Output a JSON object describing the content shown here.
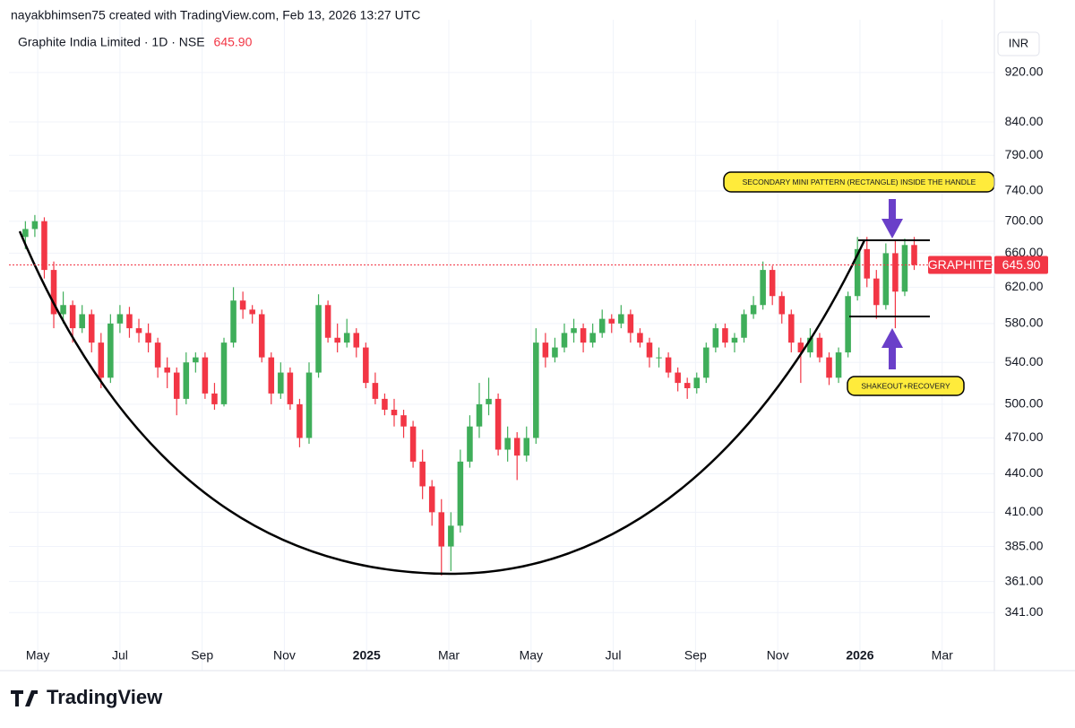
{
  "chart_data": {
    "type": "candlestick",
    "attribution": "nayakbhimsen75 created with TradingView.com, Feb 13, 2026 13:27 UTC",
    "title": "Graphite India Limited · 1D · NSE",
    "currency": "INR",
    "symbol": "GRAPHITE",
    "last_price": {
      "value": 645.9,
      "label": "645.90"
    },
    "brand": "TradingView",
    "annotations": [
      "SECONDARY MINI PATTERN (RECTANGLE) INSIDE THE HANDLE",
      "SHAKEOUT+RECOVERY"
    ],
    "up_color": "#3fae5a",
    "down_color": "#f23645",
    "log_scale": true,
    "grid": true,
    "x": [
      0.7,
      0.93,
      1.16,
      1.39,
      1.62,
      1.85,
      2.08,
      2.31,
      2.54,
      2.77,
      3.0,
      3.23,
      3.46,
      3.69,
      3.92,
      4.15,
      4.38,
      4.61,
      4.84,
      5.07,
      5.3,
      5.53,
      5.76,
      5.99,
      6.22,
      6.45,
      6.68,
      6.91,
      7.14,
      7.37,
      7.6,
      7.83,
      8.06,
      8.29,
      8.52,
      8.75,
      8.98,
      9.21,
      9.44,
      9.67,
      9.9,
      10.13,
      10.36,
      10.59,
      10.82,
      11.05,
      11.28,
      11.51,
      11.74,
      11.97,
      12.2,
      12.43,
      12.66,
      12.89,
      13.12,
      13.35,
      13.58,
      13.81,
      14.04,
      14.27,
      14.5,
      14.73,
      14.96,
      15.19,
      15.42,
      15.65,
      15.88,
      16.11,
      16.34,
      16.57,
      16.8,
      17.03,
      17.26,
      17.49,
      17.72,
      17.95,
      18.18,
      18.41,
      18.64,
      18.87,
      19.1,
      19.33,
      19.56,
      19.79,
      20.02,
      20.25,
      20.48,
      20.71,
      20.94,
      21.17,
      21.4,
      21.63,
      21.86,
      22.09,
      22.32
    ],
    "open": [
      680,
      690,
      700,
      640,
      590,
      600,
      575,
      590,
      560,
      525,
      580,
      590,
      575,
      570,
      560,
      535,
      530,
      505,
      540,
      545,
      510,
      500,
      560,
      605,
      595,
      590,
      545,
      510,
      530,
      500,
      470,
      530,
      600,
      565,
      560,
      570,
      555,
      520,
      505,
      495,
      490,
      480,
      450,
      430,
      410,
      385,
      400,
      450,
      480,
      500,
      505,
      460,
      470,
      455,
      470,
      560,
      545,
      555,
      570,
      575,
      560,
      570,
      585,
      580,
      590,
      570,
      560,
      545,
      545,
      530,
      520,
      515,
      525,
      555,
      575,
      560,
      565,
      590,
      600,
      640,
      610,
      590,
      560,
      550,
      565,
      545,
      525,
      550,
      610,
      665,
      630,
      600,
      660,
      615,
      670
    ],
    "high": [
      700,
      708,
      705,
      650,
      615,
      605,
      600,
      595,
      570,
      590,
      600,
      598,
      585,
      580,
      565,
      545,
      535,
      550,
      550,
      550,
      520,
      565,
      620,
      615,
      600,
      595,
      550,
      540,
      535,
      505,
      540,
      612,
      605,
      580,
      585,
      575,
      560,
      530,
      510,
      505,
      495,
      485,
      460,
      435,
      420,
      410,
      460,
      490,
      520,
      525,
      510,
      480,
      475,
      480,
      575,
      570,
      565,
      580,
      585,
      580,
      580,
      595,
      590,
      600,
      595,
      575,
      565,
      555,
      550,
      535,
      525,
      530,
      560,
      580,
      580,
      570,
      595,
      610,
      650,
      645,
      615,
      595,
      565,
      575,
      570,
      550,
      555,
      615,
      680,
      680,
      640,
      672,
      675,
      678,
      680
    ],
    "low": [
      665,
      680,
      630,
      575,
      580,
      560,
      570,
      550,
      515,
      520,
      570,
      565,
      560,
      550,
      525,
      515,
      490,
      500,
      530,
      505,
      495,
      498,
      555,
      585,
      580,
      540,
      500,
      505,
      495,
      462,
      465,
      525,
      560,
      550,
      555,
      545,
      515,
      500,
      490,
      480,
      470,
      445,
      420,
      400,
      365,
      368,
      395,
      445,
      470,
      490,
      455,
      450,
      435,
      450,
      465,
      535,
      540,
      550,
      560,
      550,
      555,
      565,
      570,
      575,
      560,
      555,
      535,
      535,
      525,
      512,
      505,
      510,
      520,
      550,
      555,
      550,
      560,
      585,
      595,
      600,
      580,
      550,
      520,
      545,
      540,
      518,
      520,
      545,
      605,
      620,
      585,
      595,
      575,
      610,
      640
    ],
    "close": [
      690,
      700,
      640,
      590,
      600,
      575,
      590,
      560,
      525,
      580,
      590,
      575,
      570,
      560,
      535,
      530,
      505,
      540,
      545,
      510,
      500,
      560,
      605,
      595,
      590,
      545,
      510,
      530,
      500,
      470,
      530,
      600,
      565,
      560,
      570,
      555,
      520,
      505,
      495,
      490,
      480,
      450,
      430,
      410,
      385,
      400,
      450,
      480,
      500,
      505,
      460,
      470,
      455,
      470,
      560,
      545,
      555,
      570,
      575,
      560,
      570,
      585,
      580,
      590,
      570,
      560,
      545,
      545,
      530,
      520,
      515,
      525,
      555,
      575,
      560,
      565,
      590,
      600,
      640,
      610,
      590,
      560,
      550,
      565,
      545,
      525,
      550,
      610,
      665,
      630,
      600,
      660,
      615,
      670,
      645.9
    ],
    "xlim": [
      0.3,
      24.27
    ],
    "xticks": [
      {
        "value": 1,
        "label": "May"
      },
      {
        "value": 3,
        "label": "Jul"
      },
      {
        "value": 5,
        "label": "Sep"
      },
      {
        "value": 7,
        "label": "Nov"
      },
      {
        "value": 9,
        "label": "2025"
      },
      {
        "value": 11,
        "label": "Mar"
      },
      {
        "value": 13,
        "label": "May"
      },
      {
        "value": 15,
        "label": "Jul"
      },
      {
        "value": 17,
        "label": "Sep"
      },
      {
        "value": 19,
        "label": "Nov"
      },
      {
        "value": 21,
        "label": "2026"
      },
      {
        "value": 23,
        "label": "Mar"
      }
    ],
    "ylim": [
      322,
      949
    ],
    "yticks": [
      {
        "value": 341,
        "label": "341.00"
      },
      {
        "value": 361,
        "label": "361.00"
      },
      {
        "value": 385,
        "label": "385.00"
      },
      {
        "value": 410,
        "label": "410.00"
      },
      {
        "value": 440,
        "label": "440.00"
      },
      {
        "value": 470,
        "label": "470.00"
      },
      {
        "value": 500,
        "label": "500.00"
      },
      {
        "value": 540,
        "label": "540.00"
      },
      {
        "value": 580,
        "label": "580.00"
      },
      {
        "value": 620,
        "label": "620.00"
      },
      {
        "value": 660,
        "label": "660.00"
      },
      {
        "value": 700,
        "label": "700.00"
      },
      {
        "value": 740,
        "label": "740.00"
      },
      {
        "value": 790,
        "label": "790.00"
      },
      {
        "value": 840,
        "label": "840.00"
      },
      {
        "value": 920,
        "label": "920.00"
      }
    ]
  }
}
